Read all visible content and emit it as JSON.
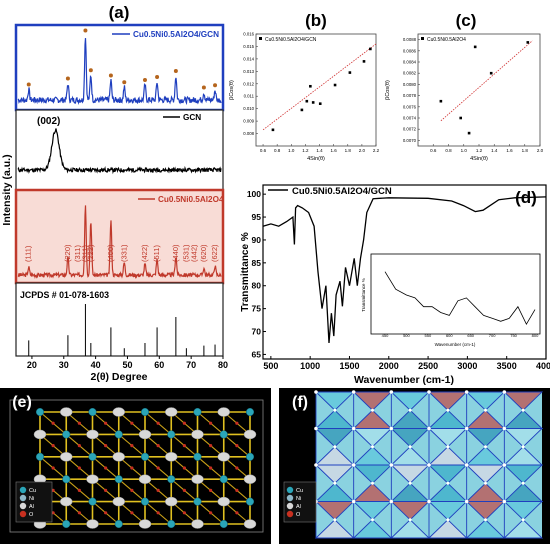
{
  "panels": {
    "a": "(a)",
    "b": "(b)",
    "c": "(c)",
    "d": "(d)",
    "e": "(e)",
    "f": "(f)"
  },
  "panel_a": {
    "legend_composite": "Cu0.5Ni0.5Al2O4/GCN",
    "legend_gcn": "GCN",
    "legend_spinel": "Cu0.5Ni0.5Al2O4",
    "gcn_peak_label": "(002)",
    "jcpds": "JCPDS # 01-078-1603",
    "ylabel": "Intensity (a.u.)",
    "xlabel": "2(θ) Degree",
    "xticks": [
      "20",
      "30",
      "40",
      "50",
      "60",
      "70",
      "80"
    ]
  },
  "panel_b": {
    "legend": "Cu0.5Ni0.5Al2O4/GCN",
    "xlabel": "4Sin(θ)",
    "ylabel": "βCos(θ)"
  },
  "panel_c": {
    "legend": "Cu0.5Ni0.5Al2O4",
    "xlabel": "4Sin(θ)",
    "ylabel": "βCos(θ)"
  },
  "panel_d": {
    "legend": "Cu0.5Ni0.5Al2O4/GCN",
    "ylabel": "Transmittance %",
    "xlabel": "Wavenumber (cm-1)",
    "xticks": [
      "500",
      "1000",
      "1500",
      "2000",
      "2500",
      "3000",
      "3500",
      "4000"
    ],
    "inset_xlabel": "Wavenumber (cm-1)",
    "inset_ylabel": "Transmittance %"
  },
  "panel_e": {
    "legend_items": [
      "Cu",
      "Ni",
      "Al",
      "O"
    ],
    "legend_colors": [
      "#2aa5b8",
      "#8fb8c8",
      "#d8d8d8",
      "#c83020"
    ]
  },
  "panel_f": {
    "legend_items": [
      "Cu",
      "Ni",
      "Al",
      "O"
    ],
    "legend_colors": [
      "#2aa5b8",
      "#8fb8c8",
      "#d8d8d8",
      "#c83020"
    ]
  },
  "chart_data": [
    {
      "type": "line",
      "panel": "a",
      "xlabel": "2(θ) Degree",
      "ylabel": "Intensity (a.u.)",
      "xlim": [
        15,
        80
      ],
      "series": [
        {
          "name": "Cu0.5Ni0.5Al2O4/GCN",
          "peaks": [
            {
              "x": 19.0,
              "h": 0.14
            },
            {
              "x": 31.3,
              "h": 0.22
            },
            {
              "x": 36.8,
              "h": 0.86
            },
            {
              "x": 38.5,
              "h": 0.33
            },
            {
              "x": 44.8,
              "h": 0.26
            },
            {
              "x": 49.0,
              "h": 0.17
            },
            {
              "x": 55.5,
              "h": 0.2
            },
            {
              "x": 59.3,
              "h": 0.24
            },
            {
              "x": 65.2,
              "h": 0.32
            },
            {
              "x": 74.0,
              "h": 0.1
            },
            {
              "x": 77.5,
              "h": 0.13
            }
          ]
        },
        {
          "name": "GCN",
          "peaks": [
            {
              "x": 27.4,
              "h": 0.8
            }
          ]
        },
        {
          "name": "Cu0.5Ni0.5Al2O4",
          "peaks": [
            {
              "x": 19.0,
              "h": 0.1
            },
            {
              "x": 31.3,
              "h": 0.22
            },
            {
              "x": 36.8,
              "h": 0.9
            },
            {
              "x": 38.5,
              "h": 0.7
            },
            {
              "x": 44.8,
              "h": 0.7
            },
            {
              "x": 49.0,
              "h": 0.16
            },
            {
              "x": 55.5,
              "h": 0.14
            },
            {
              "x": 59.3,
              "h": 0.2
            },
            {
              "x": 65.2,
              "h": 0.24
            },
            {
              "x": 74.0,
              "h": 0.09
            },
            {
              "x": 77.5,
              "h": 0.12
            }
          ],
          "peak_labels": [
            {
              "x": 19.0,
              "label": "(111)"
            },
            {
              "x": 31.3,
              "label": "(220)"
            },
            {
              "x": 34.5,
              "label": "(311)"
            },
            {
              "x": 36.8,
              "label": "(311)"
            },
            {
              "x": 38.5,
              "label": "(222)"
            },
            {
              "x": 44.8,
              "label": "(400)"
            },
            {
              "x": 49.0,
              "label": "(331)"
            },
            {
              "x": 55.5,
              "label": "(422)"
            },
            {
              "x": 59.3,
              "label": "(511)"
            },
            {
              "x": 65.2,
              "label": "(440)"
            },
            {
              "x": 68.5,
              "label": "(531)"
            },
            {
              "x": 71.0,
              "label": "(442)"
            },
            {
              "x": 74.0,
              "label": "(620)"
            },
            {
              "x": 77.5,
              "label": "(622)"
            }
          ]
        },
        {
          "name": "JCPDS # 01-078-1603",
          "sticks": [
            {
              "x": 19.0,
              "h": 0.3
            },
            {
              "x": 31.3,
              "h": 0.4
            },
            {
              "x": 36.8,
              "h": 1.0
            },
            {
              "x": 38.5,
              "h": 0.25
            },
            {
              "x": 44.8,
              "h": 0.55
            },
            {
              "x": 49.0,
              "h": 0.15
            },
            {
              "x": 55.5,
              "h": 0.25
            },
            {
              "x": 59.3,
              "h": 0.55
            },
            {
              "x": 65.2,
              "h": 0.75
            },
            {
              "x": 68.5,
              "h": 0.15
            },
            {
              "x": 74.0,
              "h": 0.2
            },
            {
              "x": 77.5,
              "h": 0.22
            }
          ]
        }
      ]
    },
    {
      "type": "scatter",
      "panel": "b",
      "xlabel": "4Sin(θ)",
      "ylabel": "βCos(θ)",
      "xlim": [
        0.5,
        2.2
      ],
      "ylim": [
        0.007,
        0.016
      ],
      "xticks": [
        "0.6",
        "0.8",
        "1.0",
        "1.2",
        "1.4",
        "1.6",
        "1.8",
        "2.0",
        "2.2"
      ],
      "yticks": [
        "0.008",
        "0.009",
        "0.010",
        "0.011",
        "0.012",
        "0.013",
        "0.014",
        "0.015",
        "0.016"
      ],
      "points": [
        {
          "x": 0.74,
          "y": 0.0083
        },
        {
          "x": 1.15,
          "y": 0.0099
        },
        {
          "x": 1.22,
          "y": 0.0106
        },
        {
          "x": 1.27,
          "y": 0.0118
        },
        {
          "x": 1.31,
          "y": 0.0105
        },
        {
          "x": 1.41,
          "y": 0.0104
        },
        {
          "x": 1.62,
          "y": 0.0119
        },
        {
          "x": 1.83,
          "y": 0.0129
        },
        {
          "x": 2.03,
          "y": 0.0138
        },
        {
          "x": 2.12,
          "y": 0.0148
        }
      ],
      "fit": {
        "x": [
          0.6,
          2.2
        ],
        "y": [
          0.0083,
          0.0152
        ]
      }
    },
    {
      "type": "scatter",
      "panel": "c",
      "xlabel": "4Sin(θ)",
      "ylabel": "βCos(θ)",
      "xlim": [
        0.4,
        2.0
      ],
      "ylim": [
        0.0069,
        0.0089
      ],
      "xticks": [
        "0.6",
        "0.8",
        "1.0",
        "1.2",
        "1.4",
        "1.6",
        "1.8",
        "2.0"
      ],
      "yticks": [
        "0.0070",
        "0.0072",
        "0.0074",
        "0.0076",
        "0.0078",
        "0.0080",
        "0.0082",
        "0.0084",
        "0.0086",
        "0.0088"
      ],
      "points": [
        {
          "x": 0.7,
          "y": 0.0077
        },
        {
          "x": 0.96,
          "y": 0.0074
        },
        {
          "x": 1.07,
          "y": 0.00713
        },
        {
          "x": 1.15,
          "y": 0.00867
        },
        {
          "x": 1.36,
          "y": 0.0082
        },
        {
          "x": 1.84,
          "y": 0.00875
        }
      ],
      "fit": {
        "x": [
          0.7,
          1.9
        ],
        "y": [
          0.00735,
          0.00878
        ]
      }
    },
    {
      "type": "line",
      "panel": "d",
      "xlabel": "Wavenumber (cm-1)",
      "ylabel": "Transmittance %",
      "xlim": [
        400,
        4000
      ],
      "ylim": [
        64,
        102
      ],
      "yticks": [
        "65",
        "70",
        "75",
        "80",
        "85",
        "90",
        "95",
        "100"
      ],
      "series": [
        {
          "name": "Cu0.5Ni0.5Al2O4/GCN",
          "x": [
            400,
            500,
            600,
            700,
            780,
            800,
            815,
            840,
            900,
            980,
            1050,
            1100,
            1150,
            1200,
            1240,
            1270,
            1300,
            1330,
            1380,
            1410,
            1450,
            1500,
            1560,
            1600,
            1640,
            1680,
            1720,
            1800,
            2000,
            2500,
            2800,
            2950,
            3100,
            3200,
            3400,
            3600,
            4000
          ],
          "y": [
            93,
            93.5,
            93,
            94,
            95,
            89,
            97,
            97.5,
            97,
            96,
            93,
            83,
            75,
            80,
            67.5,
            74,
            69,
            78,
            81,
            75.5,
            84,
            80,
            86,
            80,
            86,
            90,
            96,
            99,
            99.2,
            99.1,
            98.5,
            97.5,
            96.2,
            96.5,
            98.8,
            99.2,
            99.4
          ]
        },
        {
          "name": "inset",
          "x": [
            450,
            475,
            500,
            520,
            540,
            560,
            580,
            600,
            620,
            640,
            660,
            680,
            700,
            720,
            740,
            760,
            780,
            800
          ],
          "y": [
            1.0,
            0.7,
            0.6,
            0.55,
            0.4,
            0.4,
            0.3,
            0.25,
            0.5,
            0.55,
            0.4,
            0.25,
            0.2,
            0.15,
            0.2,
            0.4,
            0.1,
            0.35
          ]
        }
      ]
    }
  ]
}
